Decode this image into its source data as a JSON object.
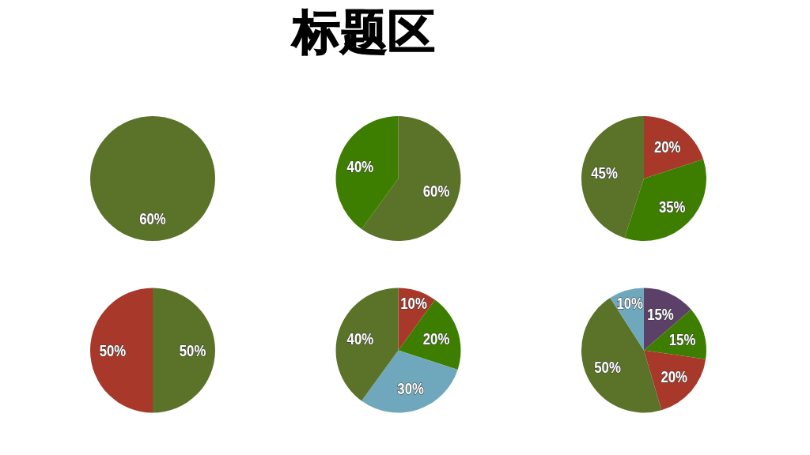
{
  "chart_data": [
    {
      "type": "other",
      "title": "标题区"
    },
    {
      "type": "pie",
      "categories": [
        null
      ],
      "values": [
        60
      ],
      "colors": [
        "#5b7229"
      ],
      "value_labels": [
        "60%"
      ]
    },
    {
      "type": "pie",
      "categories": [
        null,
        null
      ],
      "values": [
        60,
        40
      ],
      "colors": [
        "#5b7229",
        "#3d7e00"
      ],
      "value_labels": [
        "60%",
        "40%"
      ]
    },
    {
      "type": "pie",
      "categories": [
        null,
        null,
        null
      ],
      "values": [
        20,
        35,
        45
      ],
      "colors": [
        "#a8382a",
        "#3d7e00",
        "#5b7229"
      ],
      "value_labels": [
        "20%",
        "35%",
        "45%"
      ]
    },
    {
      "type": "pie",
      "categories": [
        null,
        null
      ],
      "values": [
        50,
        50
      ],
      "colors": [
        "#5b7229",
        "#a8382a"
      ],
      "value_labels": [
        "50%",
        "50%"
      ]
    },
    {
      "type": "pie",
      "categories": [
        null,
        null,
        null,
        null
      ],
      "values": [
        10,
        20,
        30,
        40
      ],
      "colors": [
        "#a8382a",
        "#3d7e00",
        "#6fa8bc",
        "#5b7229"
      ],
      "value_labels": [
        "10%",
        "20%",
        "30%",
        "40%"
      ]
    },
    {
      "type": "pie",
      "categories": [
        null,
        null,
        null,
        null,
        null
      ],
      "values": [
        15,
        15,
        20,
        50,
        10
      ],
      "colors": [
        "#5b4068",
        "#3d7e00",
        "#a8382a",
        "#5b7229",
        "#6fa8bc"
      ],
      "value_labels": [
        "15%",
        "15%",
        "20%",
        "50%",
        "10%"
      ]
    }
  ]
}
